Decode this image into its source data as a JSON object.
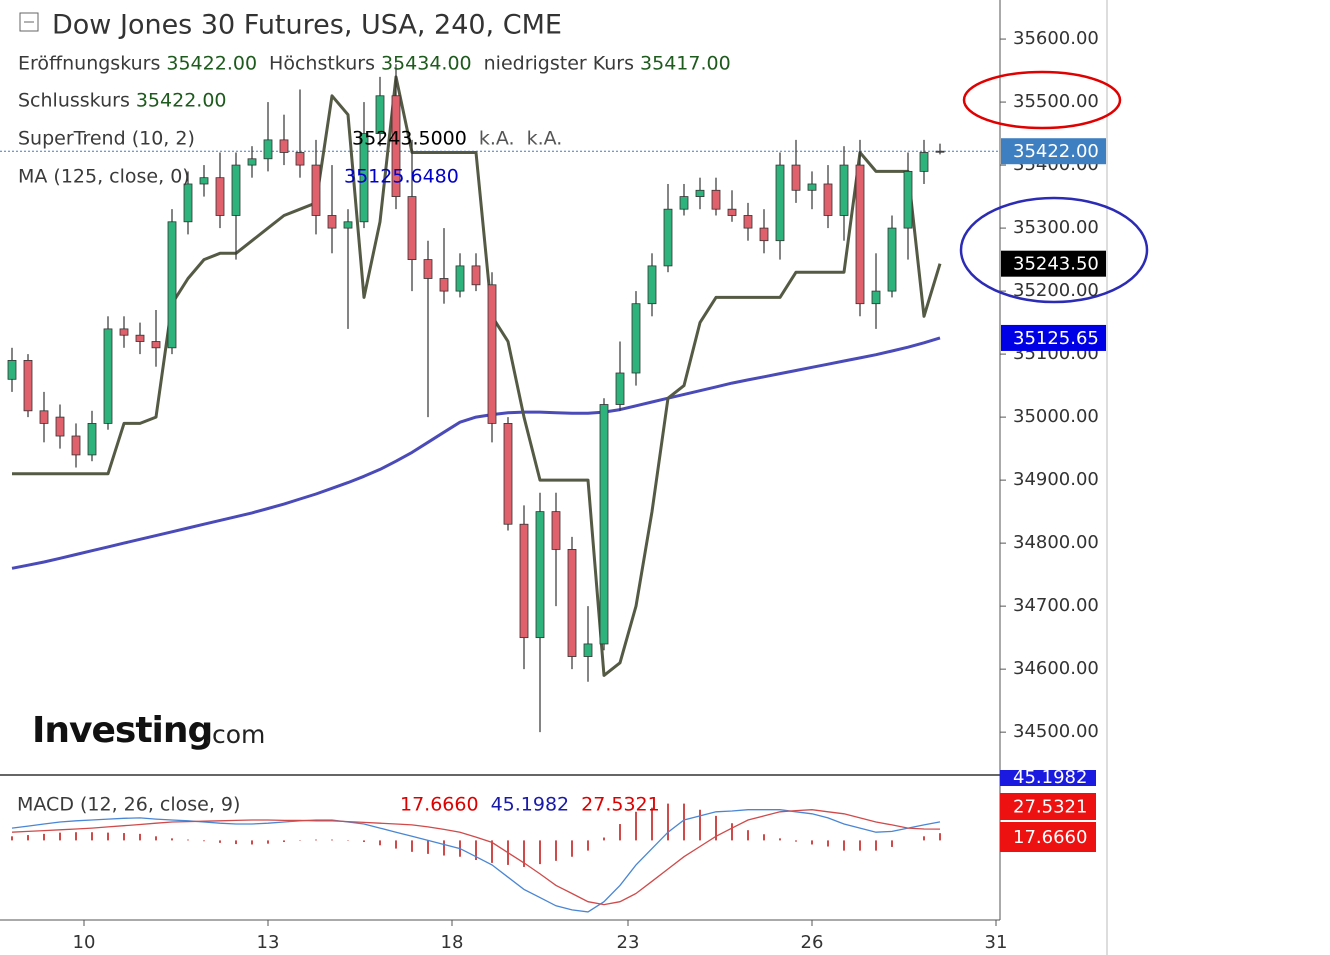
{
  "chart_data": [
    {
      "type": "candlestick",
      "title": "Dow Jones 30 Futures, USA, 240, CME",
      "ohlc": [
        {
          "label": "Eröffnungskurs",
          "value": "35422.00"
        },
        {
          "label": "Höchstkurs",
          "value": "35434.00"
        },
        {
          "label": "niedrigster Kurs",
          "value": "35417.00"
        },
        {
          "label": "Schlusskurs",
          "value": "35422.00"
        }
      ],
      "categories": [
        null,
        null,
        null,
        null,
        null,
        null,
        null,
        null,
        null,
        null,
        null,
        null,
        null,
        null,
        null,
        null,
        null,
        null,
        null,
        null,
        null,
        null,
        null,
        null,
        null,
        null,
        null,
        null,
        null,
        null,
        null,
        null,
        null,
        null,
        null,
        null,
        null,
        null,
        null,
        null,
        null,
        null,
        null,
        null,
        null,
        null,
        null,
        null,
        null,
        null,
        null,
        null,
        null,
        null,
        null,
        null,
        null,
        null,
        null
      ],
      "open": [
        35060,
        35090,
        35010,
        35000,
        34970,
        34940,
        34990,
        35140,
        35130,
        35120,
        35110,
        35310,
        35370,
        35380,
        35320,
        35400,
        35410,
        35440,
        35420,
        35400,
        35320,
        35300,
        35310,
        35450,
        35510,
        35350,
        35250,
        35220,
        35200,
        35240,
        35210,
        34990,
        34830,
        34650,
        34850,
        34790,
        34620,
        34640,
        35020,
        35070,
        35180,
        35240,
        35330,
        35350,
        35360,
        35330,
        35320,
        35300,
        35280,
        35400,
        35360,
        35370,
        35320,
        35400,
        35180,
        35200,
        35300,
        35390,
        35422
      ],
      "high": [
        35110,
        35100,
        35040,
        35020,
        34990,
        35010,
        35160,
        35160,
        35150,
        35170,
        35330,
        35390,
        35400,
        35420,
        35420,
        35430,
        35500,
        35480,
        35520,
        35440,
        35400,
        35330,
        35500,
        35540,
        35560,
        35440,
        35280,
        35300,
        35260,
        35260,
        35230,
        35000,
        34860,
        34880,
        34880,
        34810,
        34700,
        35030,
        35120,
        35200,
        35260,
        35370,
        35370,
        35380,
        35380,
        35360,
        35340,
        35330,
        35420,
        35440,
        35390,
        35400,
        35430,
        35440,
        35260,
        35320,
        35420,
        35440,
        35434
      ],
      "low": [
        35040,
        35000,
        34960,
        34950,
        34920,
        34930,
        34980,
        35110,
        35100,
        35080,
        35100,
        35290,
        35350,
        35300,
        35250,
        35380,
        35390,
        35400,
        35380,
        35290,
        35260,
        35140,
        35300,
        35430,
        35330,
        35200,
        35000,
        35180,
        35190,
        35200,
        34960,
        34820,
        34600,
        34500,
        34700,
        34600,
        34580,
        34630,
        35010,
        35050,
        35160,
        35230,
        35320,
        35330,
        35320,
        35310,
        35280,
        35260,
        35250,
        35340,
        35330,
        35300,
        35280,
        35160,
        35140,
        35190,
        35250,
        35370,
        35417
      ],
      "close": [
        35090,
        35010,
        34990,
        34970,
        34940,
        34990,
        35140,
        35130,
        35120,
        35110,
        35310,
        35370,
        35380,
        35320,
        35400,
        35410,
        35440,
        35420,
        35400,
        35320,
        35300,
        35310,
        35450,
        35510,
        35350,
        35250,
        35220,
        35200,
        35240,
        35210,
        34990,
        34830,
        34650,
        34850,
        34790,
        34620,
        34640,
        35020,
        35070,
        35180,
        35240,
        35330,
        35350,
        35360,
        35330,
        35320,
        35300,
        35280,
        35400,
        35360,
        35370,
        35320,
        35400,
        35180,
        35200,
        35300,
        35390,
        35420,
        35422
      ],
      "up_color": "#2fb37c",
      "down_color": "#e0606c",
      "overlays": [
        {
          "name": "SuperTrend (10, 2)",
          "color": "#545a44",
          "legend_values": [
            "35243.5000",
            "k.A.",
            "k.A."
          ],
          "values": [
            34910,
            34910,
            34910,
            34910,
            34910,
            34910,
            34910,
            34990,
            34990,
            35000,
            35180,
            35220,
            35250,
            35260,
            35260,
            35280,
            35300,
            35320,
            35330,
            35340,
            35510,
            35480,
            35190,
            35310,
            35540,
            35420,
            35420,
            35420,
            35420,
            35420,
            35160,
            35120,
            35000,
            34900,
            34900,
            34900,
            34900,
            34590,
            34610,
            34700,
            34850,
            35030,
            35050,
            35150,
            35190,
            35190,
            35190,
            35190,
            35190,
            35230,
            35230,
            35230,
            35230,
            35420,
            35390,
            35390,
            35390,
            35160,
            35243.5
          ]
        },
        {
          "name": "MA (125, close, 0)",
          "color": "#4a4ab8",
          "legend_values": [
            "35125.6480"
          ],
          "values": [
            34760,
            34765,
            34770,
            34776,
            34782,
            34788,
            34794,
            34800,
            34806,
            34812,
            34818,
            34824,
            34830,
            34836,
            34842,
            34848,
            34855,
            34862,
            34870,
            34878,
            34887,
            34896,
            34906,
            34917,
            34930,
            34944,
            34960,
            34976,
            34992,
            35000,
            35004,
            35007,
            35008,
            35008,
            35007,
            35006,
            35006,
            35008,
            35012,
            35018,
            35024,
            35030,
            35036,
            35042,
            35048,
            35054,
            35059,
            35064,
            35069,
            35074,
            35079,
            35084,
            35089,
            35094,
            35099,
            35105,
            35111,
            35118,
            35125.65
          ]
        }
      ],
      "price_labels": [
        {
          "value": 35422,
          "label": "35422.00",
          "color": "#3d7fc1"
        },
        {
          "value": 35243.5,
          "label": "35243.50",
          "color": "#000000"
        },
        {
          "value": 35125.65,
          "label": "35125.65",
          "color": "#0000e6"
        }
      ],
      "last_price_line": true,
      "ylim": [
        34432,
        35662
      ],
      "yticks": [
        {
          "value": 34500,
          "label": "34500.00"
        },
        {
          "value": 34600,
          "label": "34600.00"
        },
        {
          "value": 34700,
          "label": "34700.00"
        },
        {
          "value": 34800,
          "label": "34800.00"
        },
        {
          "value": 34900,
          "label": "34900.00"
        },
        {
          "value": 35000,
          "label": "35000.00"
        },
        {
          "value": 35100,
          "label": "35100.00"
        },
        {
          "value": 35200,
          "label": "35200.00"
        },
        {
          "value": 35300,
          "label": "35300.00"
        },
        {
          "value": 35400,
          "label": "35400.00"
        },
        {
          "value": 35500,
          "label": "35500.00"
        },
        {
          "value": 35600,
          "label": "35600.00"
        }
      ],
      "xlim": [
        -0.75,
        61.75
      ],
      "xticks": [
        {
          "value": 4.5,
          "label": "10"
        },
        {
          "value": 16,
          "label": "13"
        },
        {
          "value": 27.5,
          "label": "18"
        },
        {
          "value": 38.5,
          "label": "23"
        },
        {
          "value": 50,
          "label": "26"
        },
        {
          "value": 61.5,
          "label": "31"
        }
      ],
      "watermark": [
        "Investing",
        ".com"
      ]
    },
    {
      "type": "macd",
      "title": "MACD (12, 26, close, 9)",
      "legend_values": [
        {
          "label": "17.6660",
          "color": "#dd0000"
        },
        {
          "label": "45.1982",
          "color": "#1a1aaa"
        },
        {
          "label": "27.5321",
          "color": "#dd0000"
        }
      ],
      "badges": [
        {
          "label": "45.1982",
          "color": "#1a1ae0"
        },
        {
          "label": "27.5321",
          "color": "#ee1111"
        },
        {
          "label": "17.6660",
          "color": "#ee1111"
        }
      ],
      "series": [
        {
          "style": "histogram",
          "color": "#d04a4a",
          "values": [
            10,
            13,
            16,
            19,
            20,
            20,
            19,
            18,
            16,
            10,
            5,
            2,
            -2,
            -6,
            -9,
            -10,
            -8,
            -4,
            -1,
            2,
            2,
            -1,
            -4,
            -12,
            -20,
            -28,
            -33,
            -37,
            -40,
            -48,
            -55,
            -60,
            -65,
            -58,
            -50,
            -40,
            -25,
            7,
            40,
            70,
            80,
            90,
            90,
            75,
            60,
            42,
            25,
            15,
            5,
            -3,
            -10,
            -15,
            -25,
            -25,
            -25,
            -16,
            0,
            10,
            17.666
          ]
        },
        {
          "style": "line",
          "color": "#4a86d4",
          "values": [
            30,
            35,
            40,
            45,
            48,
            50,
            52,
            54,
            55,
            52,
            50,
            48,
            45,
            42,
            40,
            40,
            42,
            45,
            48,
            50,
            50,
            45,
            40,
            30,
            20,
            10,
            0,
            -10,
            -20,
            -40,
            -60,
            -90,
            -120,
            -140,
            -160,
            -170,
            -175,
            -150,
            -110,
            -60,
            -20,
            20,
            50,
            60,
            70,
            72,
            75,
            75,
            75,
            70,
            65,
            55,
            40,
            30,
            20,
            22,
            30,
            38,
            45.1982
          ]
        },
        {
          "style": "line",
          "color": "#d04a4a",
          "values": [
            20,
            22,
            24,
            26,
            28,
            30,
            33,
            36,
            39,
            42,
            45,
            46,
            47,
            48,
            49,
            50,
            50,
            49,
            49,
            48,
            48,
            46,
            44,
            42,
            40,
            38,
            33,
            27,
            20,
            8,
            -5,
            -30,
            -55,
            -82,
            -110,
            -130,
            -150,
            -157,
            -150,
            -130,
            -100,
            -70,
            -40,
            -15,
            10,
            30,
            50,
            60,
            70,
            73,
            75,
            70,
            65,
            55,
            45,
            38,
            30,
            28,
            27.5321
          ]
        }
      ],
      "ylim": [
        -207,
        160
      ]
    }
  ]
}
